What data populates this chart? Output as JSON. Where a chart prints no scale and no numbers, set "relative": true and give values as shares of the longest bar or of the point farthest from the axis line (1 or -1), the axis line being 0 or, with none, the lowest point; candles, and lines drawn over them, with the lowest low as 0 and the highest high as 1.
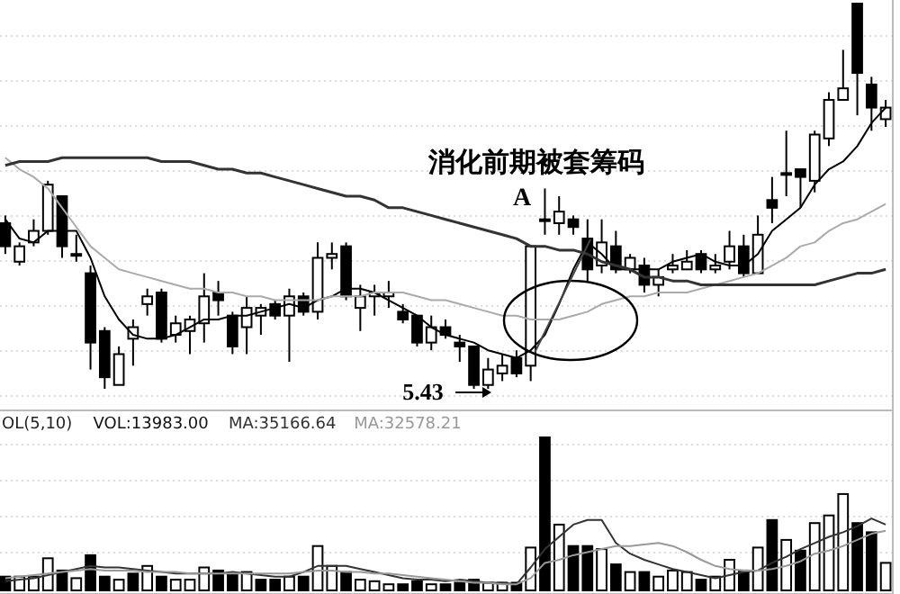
{
  "chart_data": [
    {
      "type": "candlestick",
      "relative": true,
      "grid": true,
      "categories": [
        null,
        null,
        null,
        null,
        null,
        null,
        null,
        null,
        null,
        null,
        null,
        null,
        null,
        null,
        null,
        null,
        null,
        null,
        null,
        null,
        null,
        null,
        null,
        null,
        null,
        null,
        null,
        null,
        null,
        null,
        null,
        null,
        null,
        null,
        null,
        null,
        null,
        null,
        null,
        null,
        null,
        null,
        null,
        null,
        null,
        null,
        null,
        null,
        null,
        null,
        null,
        null,
        null,
        null,
        null,
        null,
        null,
        null,
        null,
        null,
        null,
        null,
        null
      ],
      "color": "#000000",
      "ohlc": [
        [
          0.43,
          0.45,
          0.35,
          0.37
        ],
        [
          0.33,
          0.38,
          0.32,
          0.37
        ],
        [
          0.38,
          0.44,
          0.37,
          0.41
        ],
        [
          0.41,
          0.54,
          0.4,
          0.53
        ],
        [
          0.5,
          0.5,
          0.34,
          0.37
        ],
        [
          0.35,
          0.4,
          0.33,
          0.35
        ],
        [
          0.3,
          0.32,
          0.05,
          0.12
        ],
        [
          0.15,
          0.16,
          0.0,
          0.03
        ],
        [
          0.01,
          0.11,
          0.01,
          0.09
        ],
        [
          0.13,
          0.18,
          0.06,
          0.16
        ],
        [
          0.22,
          0.26,
          0.19,
          0.24
        ],
        [
          0.25,
          0.26,
          0.12,
          0.13
        ],
        [
          0.14,
          0.19,
          0.12,
          0.17
        ],
        [
          0.15,
          0.19,
          0.09,
          0.18
        ],
        [
          0.17,
          0.3,
          0.12,
          0.24
        ],
        [
          0.25,
          0.28,
          0.19,
          0.23
        ],
        [
          0.19,
          0.2,
          0.09,
          0.11
        ],
        [
          0.16,
          0.24,
          0.09,
          0.21
        ],
        [
          0.19,
          0.22,
          0.14,
          0.21
        ],
        [
          0.22,
          0.23,
          0.18,
          0.19
        ],
        [
          0.19,
          0.26,
          0.07,
          0.24
        ],
        [
          0.24,
          0.25,
          0.19,
          0.2
        ],
        [
          0.2,
          0.38,
          0.18,
          0.34
        ],
        [
          0.34,
          0.38,
          0.31,
          0.35
        ],
        [
          0.37,
          0.38,
          0.23,
          0.24
        ],
        [
          0.21,
          0.27,
          0.15,
          0.24
        ],
        [
          0.24,
          0.27,
          0.19,
          0.25
        ],
        [
          0.24,
          0.28,
          0.21,
          0.25
        ],
        [
          0.2,
          0.22,
          0.17,
          0.18
        ],
        [
          0.19,
          0.19,
          0.11,
          0.12
        ],
        [
          0.12,
          0.19,
          0.1,
          0.16
        ],
        [
          0.16,
          0.18,
          0.13,
          0.14
        ],
        [
          0.12,
          0.14,
          0.07,
          0.11
        ],
        [
          0.11,
          0.11,
          0.0,
          0.01
        ],
        [
          0.01,
          0.08,
          0.0,
          0.05
        ],
        [
          0.04,
          0.09,
          0.02,
          0.06
        ],
        [
          0.08,
          0.1,
          0.03,
          0.04
        ],
        [
          0.06,
          0.37,
          0.02,
          0.37
        ],
        [
          0.44,
          0.52,
          0.4,
          0.44
        ],
        [
          0.43,
          0.5,
          0.4,
          0.46
        ],
        [
          0.44,
          0.45,
          0.4,
          0.42
        ],
        [
          0.39,
          0.44,
          0.28,
          0.31
        ],
        [
          0.32,
          0.44,
          0.3,
          0.38
        ],
        [
          0.37,
          0.41,
          0.3,
          0.31
        ],
        [
          0.31,
          0.35,
          0.3,
          0.34
        ],
        [
          0.32,
          0.34,
          0.25,
          0.27
        ],
        [
          0.27,
          0.31,
          0.24,
          0.29
        ],
        [
          0.31,
          0.35,
          0.3,
          0.32
        ],
        [
          0.31,
          0.36,
          0.31,
          0.33
        ],
        [
          0.35,
          0.36,
          0.3,
          0.31
        ],
        [
          0.31,
          0.35,
          0.3,
          0.32
        ],
        [
          0.33,
          0.41,
          0.31,
          0.37
        ],
        [
          0.37,
          0.4,
          0.29,
          0.3
        ],
        [
          0.3,
          0.45,
          0.3,
          0.4
        ],
        [
          0.49,
          0.55,
          0.43,
          0.47
        ],
        [
          0.56,
          0.67,
          0.5,
          0.56
        ],
        [
          0.57,
          0.57,
          0.47,
          0.55
        ],
        [
          0.54,
          0.67,
          0.51,
          0.66
        ],
        [
          0.65,
          0.77,
          0.63,
          0.75
        ],
        [
          0.75,
          0.88,
          0.75,
          0.78
        ],
        [
          1,
          1,
          0.71,
          0.82
        ],
        [
          0.79,
          0.81,
          0.67,
          0.73
        ],
        [
          0.7,
          0.75,
          0.68,
          0.73
        ]
      ],
      "series": [
        {
          "type": "line",
          "color": "#000000",
          "values": [
            0.44,
            0.39,
            0.38,
            0.41,
            0.41,
            0.41,
            0.34,
            0.24,
            0.18,
            0.14,
            0.13,
            0.13,
            0.14,
            0.16,
            0.18,
            0.18,
            0.19,
            0.19,
            0.2,
            0.21,
            0.22,
            0.21,
            0.23,
            0.24,
            0.26,
            0.26,
            0.25,
            0.23,
            0.21,
            0.19,
            0.16,
            0.14,
            0.13,
            0.12,
            0.1,
            0.09,
            0.08,
            0.1,
            0.14,
            0.22,
            0.31,
            0.38,
            0.35,
            0.31,
            0.31,
            0.31,
            0.31,
            0.33,
            0.34,
            0.35,
            0.33,
            0.32,
            0.32,
            0.35,
            0.41,
            0.44,
            0.47,
            0.53,
            0.57,
            0.59,
            0.63,
            0.69,
            0.73
          ]
        },
        {
          "type": "line",
          "color": "#aaaaaa",
          "values": [
            0.6,
            0.57,
            0.55,
            0.52,
            0.47,
            0.42,
            0.37,
            0.34,
            0.31,
            0.3,
            0.29,
            0.28,
            0.27,
            0.26,
            0.26,
            0.25,
            0.25,
            0.24,
            0.24,
            0.23,
            0.23,
            0.23,
            0.23,
            0.24,
            0.24,
            0.24,
            0.25,
            0.25,
            0.25,
            0.24,
            0.23,
            0.23,
            0.22,
            0.21,
            0.2,
            0.19,
            0.19,
            0.18,
            0.18,
            0.18,
            0.19,
            0.2,
            0.22,
            0.23,
            0.24,
            0.24,
            0.25,
            0.25,
            0.25,
            0.26,
            0.27,
            0.28,
            0.29,
            0.3,
            0.32,
            0.34,
            0.37,
            0.38,
            0.41,
            0.43,
            0.44,
            0.46,
            0.48
          ]
        },
        {
          "type": "line",
          "color": "#333333",
          "values": [
            0.58,
            0.59,
            0.59,
            0.59,
            0.6,
            0.6,
            0.6,
            0.6,
            0.6,
            0.6,
            0.6,
            0.59,
            0.59,
            0.59,
            0.58,
            0.57,
            0.57,
            0.56,
            0.56,
            0.55,
            0.54,
            0.53,
            0.52,
            0.51,
            0.5,
            0.5,
            0.49,
            0.47,
            0.47,
            0.46,
            0.45,
            0.44,
            0.43,
            0.42,
            0.41,
            0.4,
            0.39,
            0.37,
            0.37,
            0.36,
            0.36,
            0.35,
            0.33,
            0.32,
            0.31,
            0.29,
            0.29,
            0.28,
            0.28,
            0.27,
            0.27,
            0.27,
            0.27,
            0.27,
            0.27,
            0.27,
            0.27,
            0.27,
            0.28,
            0.29,
            0.3,
            0.3,
            0.31
          ]
        }
      ],
      "annotations": [
        "消化前期被套筹码",
        "A",
        "5.43"
      ]
    },
    {
      "type": "bar",
      "relative": true,
      "grid": true,
      "legend": "top left",
      "legend_title": "OL(5,10)",
      "categories": [
        null,
        null,
        null,
        null,
        null,
        null,
        null,
        null,
        null,
        null,
        null,
        null,
        null,
        null,
        null,
        null,
        null,
        null,
        null,
        null,
        null,
        null,
        null,
        null,
        null,
        null,
        null,
        null,
        null,
        null,
        null,
        null,
        null,
        null,
        null,
        null,
        null,
        null,
        null,
        null,
        null,
        null,
        null,
        null,
        null,
        null,
        null,
        null,
        null,
        null,
        null,
        null,
        null,
        null,
        null,
        null,
        null,
        null,
        null,
        null,
        null,
        null,
        null
      ],
      "series": [
        {
          "name": "VOL:13983.00",
          "color": "#000000",
          "values": [
            0.09,
            0.09,
            0.09,
            0.21,
            0.13,
            0.08,
            0.23,
            0.09,
            0.07,
            0.11,
            0.16,
            0.09,
            0.07,
            0.07,
            0.15,
            0.13,
            0.1,
            0.12,
            0.07,
            0.07,
            0.09,
            0.09,
            0.29,
            0.16,
            0.12,
            0.07,
            0.06,
            0.04,
            0.04,
            0.06,
            0.04,
            0.04,
            0.05,
            0.07,
            0.05,
            0.05,
            0.05,
            0.28,
            1,
            0.43,
            0.29,
            0.29,
            0.27,
            0.17,
            0.12,
            0.12,
            0.09,
            0.13,
            0.12,
            0.07,
            0.09,
            0.2,
            0.13,
            0.28,
            0.46,
            0.33,
            0.26,
            0.44,
            0.49,
            0.63,
            0.44,
            0.38,
            0.18
          ],
          "colors": [
            "#000000",
            "#ffffff",
            "#ffffff",
            "#ffffff",
            "#000000",
            "#ffffff",
            "#000000",
            "#000000",
            "#ffffff",
            "#000000",
            "#ffffff",
            "#000000",
            "#ffffff",
            "#ffffff",
            "#ffffff",
            "#000000",
            "#000000",
            "#ffffff",
            "#000000",
            "#000000",
            "#ffffff",
            "#000000",
            "#ffffff",
            "#ffffff",
            "#000000",
            "#ffffff",
            "#ffffff",
            "#ffffff",
            "#000000",
            "#000000",
            "#ffffff",
            "#000000",
            "#000000",
            "#000000",
            "#ffffff",
            "#ffffff",
            "#000000",
            "#ffffff",
            "#000000",
            "#ffffff",
            "#000000",
            "#000000",
            "#ffffff",
            "#000000",
            "#ffffff",
            "#000000",
            "#ffffff",
            "#ffffff",
            "#ffffff",
            "#000000",
            "#ffffff",
            "#ffffff",
            "#000000",
            "#ffffff",
            "#000000",
            "#ffffff",
            "#000000",
            "#ffffff",
            "#ffffff",
            "#ffffff",
            "#000000",
            "#000000",
            "#ffffff"
          ]
        },
        {
          "type": "line",
          "name": "MA:35166.64",
          "color": "#333333",
          "values": [
            0.06,
            0.07,
            0.08,
            0.1,
            0.12,
            0.14,
            0.16,
            0.15,
            0.15,
            0.14,
            0.13,
            0.12,
            0.11,
            0.11,
            0.11,
            0.11,
            0.12,
            0.11,
            0.1,
            0.09,
            0.09,
            0.12,
            0.16,
            0.16,
            0.16,
            0.14,
            0.12,
            0.1,
            0.08,
            0.07,
            0.07,
            0.06,
            0.07,
            0.06,
            0.05,
            0.05,
            0.04,
            0.15,
            0.27,
            0.35,
            0.43,
            0.46,
            0.46,
            0.31,
            0.24,
            0.2,
            0.17,
            0.14,
            0.12,
            0.1,
            0.08,
            0.1,
            0.12,
            0.13,
            0.18,
            0.22,
            0.27,
            0.31,
            0.35,
            0.38,
            0.42,
            0.47,
            0.43
          ]
        },
        {
          "type": "line",
          "name": "MA:32578.21",
          "color": "#999999",
          "values": [
            0.08,
            0.09,
            0.1,
            0.11,
            0.12,
            0.13,
            0.14,
            0.13,
            0.13,
            0.13,
            0.12,
            0.12,
            0.12,
            0.11,
            0.11,
            0.11,
            0.11,
            0.11,
            0.11,
            0.11,
            0.11,
            0.12,
            0.13,
            0.13,
            0.12,
            0.12,
            0.11,
            0.11,
            0.1,
            0.09,
            0.08,
            0.07,
            0.06,
            0.05,
            0.05,
            0.04,
            0.04,
            0.08,
            0.18,
            0.2,
            0.23,
            0.25,
            0.27,
            0.29,
            0.29,
            0.3,
            0.31,
            0.29,
            0.25,
            0.2,
            0.16,
            0.14,
            0.13,
            0.13,
            0.14,
            0.16,
            0.19,
            0.24,
            0.26,
            0.29,
            0.33,
            0.37,
            0.39
          ]
        }
      ]
    }
  ]
}
